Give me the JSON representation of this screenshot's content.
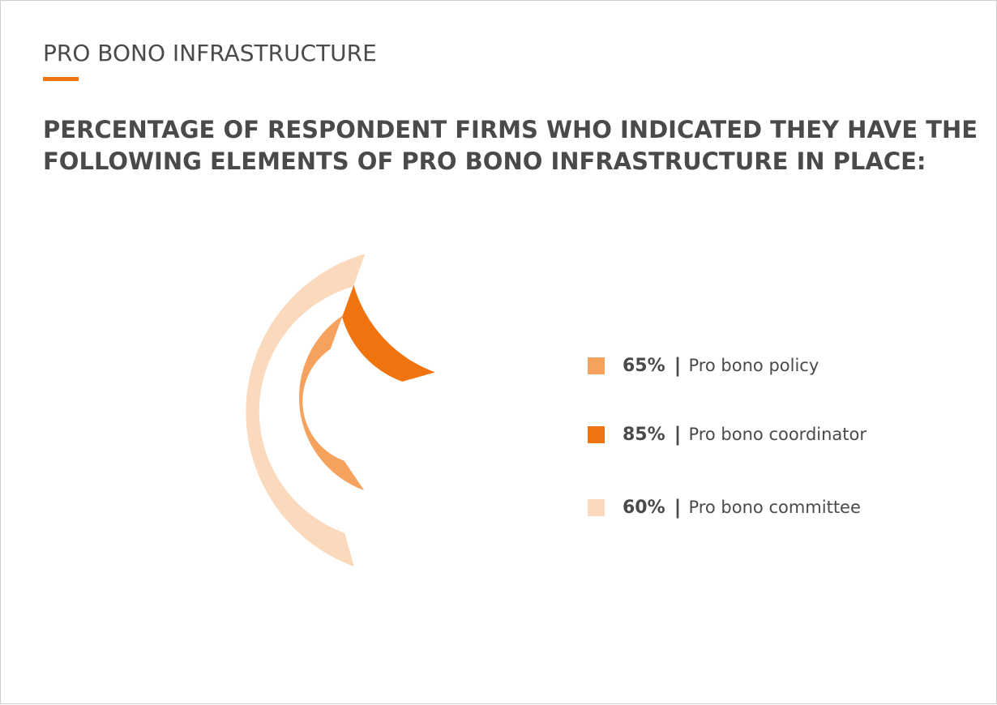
{
  "section_title": "PRO BONO INFRASTRUCTURE",
  "chart_data": {
    "type": "radial-bar",
    "title_lines": [
      "PERCENTAGE OF RESPONDENT FIRMS WHO INDICATED THEY HAVE THE",
      "FOLLOWING ELEMENTS OF PRO BONO INFRASTRUCTURE IN PLACE:"
    ],
    "series": [
      {
        "name": "Pro bono policy",
        "value": 65,
        "display": "65%",
        "color": "#f4a25e"
      },
      {
        "name": "Pro bono coordinator",
        "value": 85,
        "display": "85%",
        "color": "#ef7410"
      },
      {
        "name": "Pro bono committee",
        "value": 60,
        "display": "60%",
        "color": "#fbd9bd"
      }
    ],
    "separator": "|",
    "legend_position": "right"
  }
}
